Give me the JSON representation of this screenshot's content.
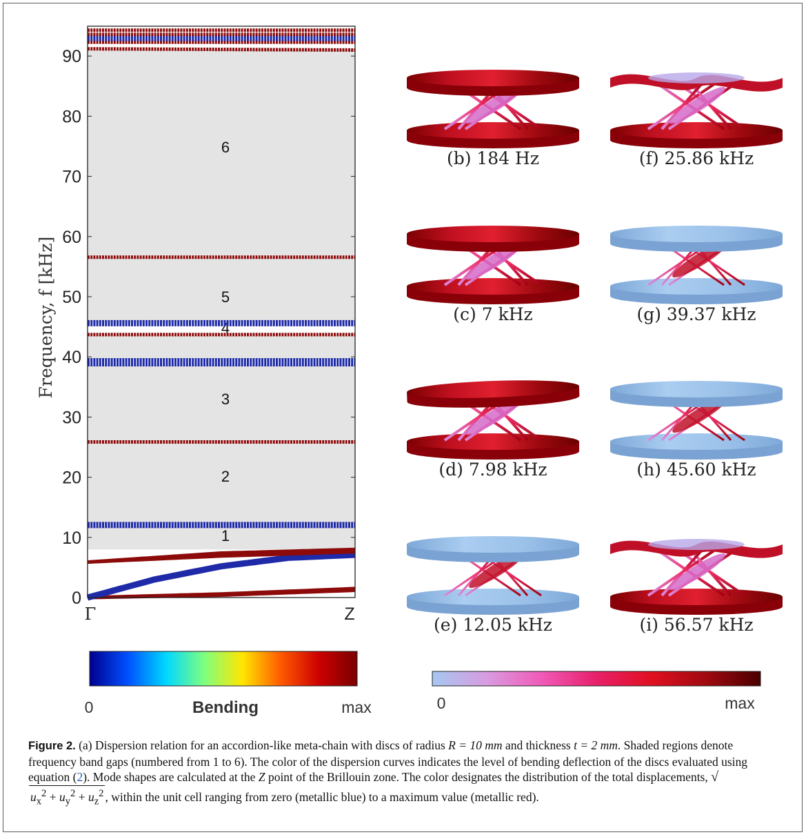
{
  "figure": {
    "caption_label": "Figure 2.",
    "caption_parts": {
      "p1": "(a) Dispersion relation for an accordion-like meta-chain with discs of radius",
      "p2": "and thickness",
      "p3": ". Shaded regions denote frequency band gaps (numbered from 1 to 6). The color of the dispersion curves indicates the level of bending deflection of the discs evaluated using equation (",
      "p4": "). Mode shapes are calculated at the",
      "p5": "point of the Brillouin zone. The color designates the distribution of the total displacements,",
      "p6": ", within the unit cell ranging from zero (metallic blue) to a maximum value (metallic red).",
      "radius": "R = 10 mm",
      "thickness": "t = 2 mm",
      "eq_ref": "2",
      "point": "Z",
      "sqrt_expr": "u_x^2 + u_y^2 + u_z^2"
    }
  },
  "chart_data": {
    "type": "line",
    "ylabel": "Frequency, f [kHz]",
    "x_tick_labels": [
      "Γ",
      "Z"
    ],
    "ylim": [
      0,
      95
    ],
    "yticks": [
      0,
      10,
      20,
      30,
      40,
      50,
      60,
      70,
      80,
      90
    ],
    "band_gaps": [
      {
        "label": "1",
        "range": [
          8.0,
          12.0
        ]
      },
      {
        "label": "2",
        "range": [
          12.2,
          25.6
        ]
      },
      {
        "label": "3",
        "range": [
          26.0,
          38.6
        ]
      },
      {
        "label": "4",
        "range": [
          39.6,
          43.5
        ]
      },
      {
        "label": "5",
        "range": [
          45.8,
          56.5
        ]
      },
      {
        "label": "6",
        "range": [
          56.8,
          91.0
        ]
      }
    ],
    "series": [
      {
        "color": "#8c0a0a",
        "x": [
          0,
          0.5,
          1
        ],
        "y": [
          0,
          0.4,
          1.2
        ]
      },
      {
        "color": "#8c0a0a",
        "x": [
          0,
          0.5,
          1
        ],
        "y": [
          0,
          0.6,
          1.5
        ]
      },
      {
        "color": "#1e2aa8",
        "x": [
          0,
          0.25,
          0.5,
          0.75,
          1
        ],
        "y": [
          0,
          3.0,
          5.2,
          6.6,
          7.1
        ]
      },
      {
        "color": "#8c0a0a",
        "x": [
          0,
          0.5,
          1
        ],
        "y": [
          5.9,
          6.9,
          7.6
        ]
      },
      {
        "color": "#8c0a0a",
        "x": [
          0,
          0.5,
          1
        ],
        "y": [
          5.9,
          7.4,
          8.0
        ]
      },
      {
        "color": "#1e2aa8",
        "x": [
          0,
          1
        ],
        "y": [
          12.05,
          12.05
        ],
        "flat": true
      },
      {
        "color": "#8c0a0a",
        "x": [
          0,
          1
        ],
        "y": [
          25.86,
          25.86
        ],
        "flat": true
      },
      {
        "color": "#1e2aa8",
        "x": [
          0,
          1
        ],
        "y": [
          39.1,
          39.1
        ],
        "flat": true,
        "thick": true
      },
      {
        "color": "#8c0a0a",
        "x": [
          0,
          1
        ],
        "y": [
          43.7,
          43.7
        ],
        "flat": true
      },
      {
        "color": "#1e2aa8",
        "x": [
          0,
          1
        ],
        "y": [
          45.6,
          45.6
        ],
        "flat": true
      },
      {
        "color": "#8c0a0a",
        "x": [
          0,
          1
        ],
        "y": [
          56.57,
          56.57
        ],
        "flat": true
      },
      {
        "color": "#8c0a0a",
        "x": [
          0,
          1
        ],
        "y": [
          91.2,
          91.0
        ],
        "flat": true
      },
      {
        "color": "#8c0a0a",
        "x": [
          0,
          1
        ],
        "y": [
          92.3,
          92.3
        ],
        "flat": true
      },
      {
        "color": "#1e2aa8",
        "x": [
          0,
          1
        ],
        "y": [
          93.0,
          93.0
        ],
        "flat": true
      },
      {
        "color": "#8c0a0a",
        "x": [
          0,
          1
        ],
        "y": [
          93.6,
          93.6
        ],
        "flat": true
      },
      {
        "color": "#8c0a0a",
        "x": [
          0,
          1
        ],
        "y": [
          94.3,
          94.3
        ],
        "flat": true
      }
    ],
    "colorbar_bending": {
      "min_label": "0",
      "title": "Bending",
      "max_label": "max",
      "colors": [
        "#00008f",
        "#0050ff",
        "#00d8ff",
        "#7fff7f",
        "#ffe600",
        "#ff5a00",
        "#cc0000",
        "#7a0000"
      ]
    },
    "colorbar_displacement": {
      "min_label": "0",
      "max_label": "max",
      "colors": [
        "#a5c8f2",
        "#d99be0",
        "#f05ab8",
        "#e8206a",
        "#e01020",
        "#a00a10",
        "#4a0000"
      ]
    },
    "mode_shapes": [
      {
        "label": "(b) 184 Hz",
        "type": "red-flat"
      },
      {
        "label": "(c) 7 kHz",
        "type": "red-flat"
      },
      {
        "label": "(d) 7.98 kHz",
        "type": "red-tilt"
      },
      {
        "label": "(e) 12.05 kHz",
        "type": "blue"
      },
      {
        "label": "(f) 25.86 kHz",
        "type": "wavy"
      },
      {
        "label": "(g) 39.37 kHz",
        "type": "blue"
      },
      {
        "label": "(h) 45.60 kHz",
        "type": "blue"
      },
      {
        "label": "(i) 56.57 kHz",
        "type": "wavy"
      }
    ]
  }
}
